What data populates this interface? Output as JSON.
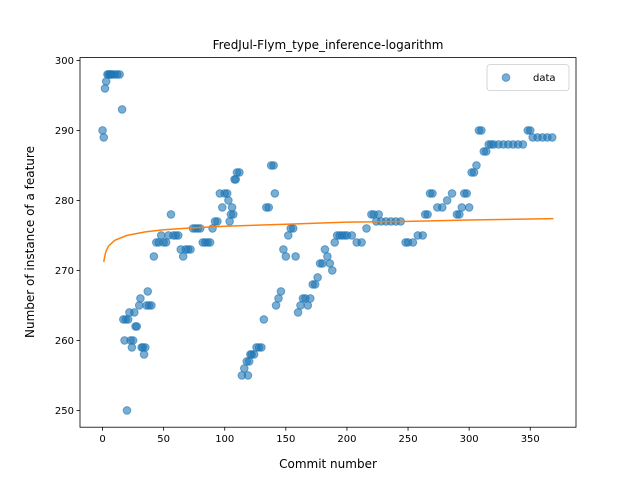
{
  "chart_data": {
    "type": "scatter",
    "title": "FredJul-Flym_type_inference-logarithm",
    "xlabel": "Commit number",
    "ylabel": "Number of instance of a feature",
    "series": [
      {
        "name": "data",
        "color": "#1f77b4",
        "x": [
          0,
          1,
          2,
          3,
          4,
          5,
          6,
          7,
          8,
          10,
          12,
          14,
          16,
          17,
          18,
          19,
          20,
          21,
          22,
          23,
          24,
          25,
          26,
          27,
          28,
          30,
          31,
          32,
          33,
          34,
          35,
          36,
          37,
          38,
          40,
          42,
          44,
          46,
          48,
          50,
          52,
          54,
          56,
          58,
          60,
          62,
          64,
          66,
          68,
          70,
          72,
          74,
          76,
          78,
          80,
          82,
          84,
          86,
          88,
          90,
          92,
          94,
          96,
          98,
          100,
          102,
          103,
          104,
          105,
          106,
          107,
          108,
          109,
          110,
          112,
          114,
          116,
          118,
          119,
          120,
          121,
          122,
          124,
          126,
          128,
          130,
          132,
          134,
          136,
          138,
          140,
          141,
          142,
          144,
          146,
          148,
          150,
          152,
          154,
          156,
          158,
          160,
          162,
          164,
          166,
          168,
          170,
          172,
          174,
          176,
          178,
          180,
          182,
          184,
          186,
          188,
          190,
          192,
          194,
          196,
          198,
          200,
          204,
          208,
          212,
          216,
          220,
          222,
          224,
          226,
          228,
          232,
          236,
          240,
          244,
          248,
          250,
          254,
          258,
          262,
          264,
          266,
          268,
          270,
          274,
          278,
          282,
          286,
          290,
          292,
          294,
          296,
          298,
          300,
          302,
          304,
          306,
          308,
          310,
          312,
          314,
          316,
          318,
          320,
          324,
          328,
          332,
          336,
          340,
          344,
          348,
          350,
          352,
          356,
          360,
          364,
          368
        ],
        "values": [
          290,
          289,
          296,
          297,
          298,
          298,
          298,
          298,
          298,
          298,
          298,
          298,
          293,
          263,
          260,
          263,
          250,
          263,
          264,
          260,
          259,
          260,
          264,
          262,
          262,
          265,
          266,
          259,
          259,
          258,
          259,
          265,
          267,
          265,
          265,
          272,
          274,
          274,
          275,
          274,
          274,
          275,
          278,
          275,
          275,
          275,
          273,
          272,
          273,
          273,
          273,
          276,
          276,
          276,
          276,
          274,
          274,
          274,
          274,
          276,
          277,
          277,
          281,
          279,
          281,
          281,
          280,
          277,
          278,
          279,
          278,
          283,
          283,
          284,
          284,
          255,
          256,
          257,
          255,
          257,
          258,
          258,
          258,
          259,
          259,
          259,
          263,
          279,
          279,
          285,
          285,
          281,
          265,
          266,
          267,
          273,
          272,
          275,
          276,
          276,
          272,
          264,
          265,
          266,
          266,
          265,
          266,
          268,
          268,
          269,
          271,
          271,
          273,
          272,
          271,
          270,
          274,
          275,
          275,
          275,
          275,
          275,
          275,
          274,
          274,
          276,
          278,
          278,
          277,
          278,
          277,
          277,
          277,
          277,
          277,
          274,
          274,
          274,
          275,
          275,
          278,
          278,
          281,
          281,
          279,
          279,
          280,
          281,
          278,
          278,
          279,
          281,
          281,
          279,
          284,
          284,
          285,
          290,
          290,
          287,
          287,
          288,
          288,
          288,
          288,
          288,
          288,
          288,
          288,
          288,
          290,
          290,
          289,
          289,
          289,
          289,
          289
        ]
      }
    ],
    "fit_line": {
      "color": "#ff7f0e",
      "x": [
        1,
        2,
        3,
        5,
        10,
        20,
        35,
        50,
        75,
        100,
        150,
        200,
        250,
        300,
        369
      ],
      "values": [
        271.2,
        272.2,
        272.8,
        273.5,
        274.3,
        275.0,
        275.5,
        275.8,
        276.1,
        276.3,
        276.6,
        276.9,
        277.0,
        277.2,
        277.4
      ]
    },
    "xlim": [
      -18.45,
      387.45
    ],
    "ylim": [
      247.6,
      300.4
    ],
    "xticks": [
      0,
      50,
      100,
      150,
      200,
      250,
      300,
      350
    ],
    "yticks": [
      250,
      260,
      270,
      280,
      290,
      300
    ],
    "legend": "upper right"
  }
}
